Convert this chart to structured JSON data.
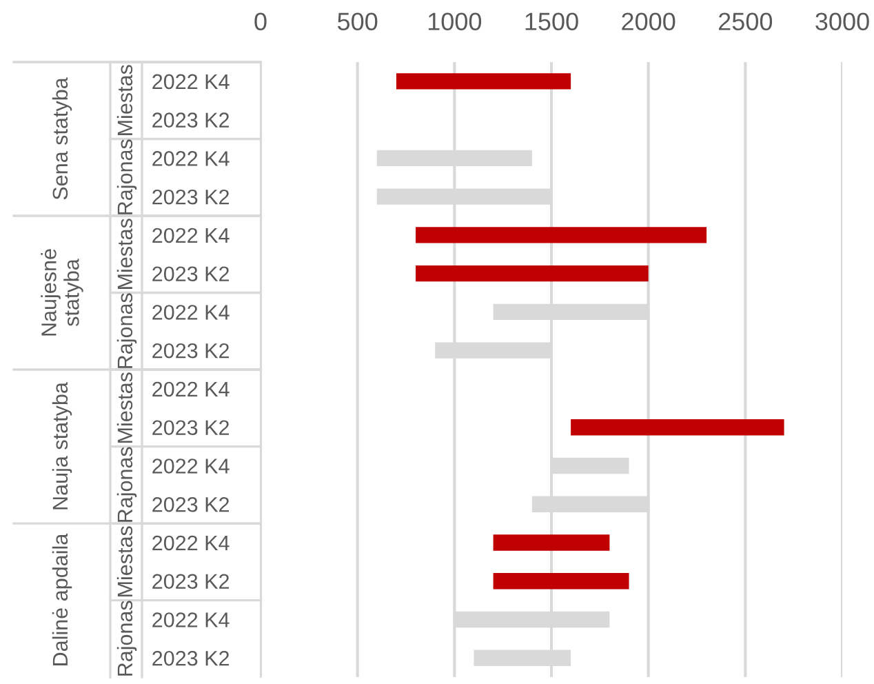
{
  "chart_data": {
    "type": "bar",
    "orientation": "horizontal",
    "grid": "x",
    "categories": [
      "2022 K4",
      "2023 K2",
      "2022 K4",
      "2023 K2",
      "2022 K4",
      "2023 K2",
      "2022 K4",
      "2023 K2",
      "2022 K4",
      "2023 K2",
      "2022 K4",
      "2023 K2",
      "2022 K4",
      "2023 K2",
      "2022 K4",
      "2023 K2"
    ],
    "series": [
      {
        "color": "#c00000",
        "base": [
          700,
          null,
          null,
          null,
          800,
          800,
          null,
          null,
          null,
          1600,
          null,
          null,
          1200,
          1200,
          null,
          null
        ],
        "values": [
          900,
          null,
          null,
          null,
          1500,
          1200,
          null,
          null,
          null,
          1100,
          null,
          null,
          600,
          700,
          null,
          null
        ]
      },
      {
        "color": "#d9d9d9",
        "base": [
          null,
          null,
          600,
          600,
          null,
          null,
          1200,
          900,
          null,
          null,
          1500,
          1400,
          null,
          null,
          1000,
          1100
        ],
        "values": [
          null,
          null,
          800,
          900,
          null,
          null,
          800,
          600,
          null,
          null,
          400,
          600,
          null,
          null,
          800,
          500
        ]
      }
    ],
    "annotations": [
      "Sena statyba",
      "Miestas",
      "Rajonas",
      "Naujesnė\nstatyba",
      "Miestas",
      "Rajonas",
      "Nauja statyba",
      "Miestas",
      "Rajonas",
      "Dalinė apdaila",
      "Miestas",
      "Rajonas"
    ],
    "xlim": [
      0,
      3000
    ],
    "xticks": [
      0,
      500,
      1000,
      1500,
      2000,
      2500,
      3000
    ]
  }
}
